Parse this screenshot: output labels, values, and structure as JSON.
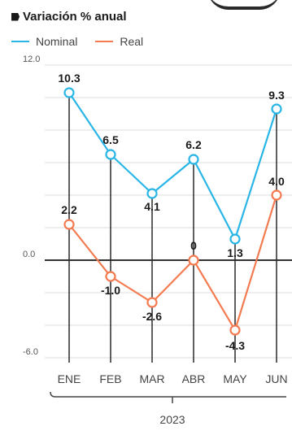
{
  "chart_data": {
    "type": "line",
    "title": "Variación % anual",
    "categories": [
      "ENE",
      "FEB",
      "MAR",
      "ABR",
      "MAY",
      "JUN"
    ],
    "group_label": "2023",
    "y_ticks": [
      "12.0",
      "0.0",
      "-6.0"
    ],
    "ylim": [
      -6,
      12
    ],
    "grid": true,
    "legend_position": "top-left",
    "series": [
      {
        "name": "Nominal",
        "color": "#29b6e6",
        "values": [
          10.3,
          6.5,
          4.1,
          6.2,
          1.3,
          9.3
        ],
        "labels": [
          "10.3",
          "6.5",
          "4.1",
          "6.2",
          "1.3",
          "9.3"
        ]
      },
      {
        "name": "Real",
        "color": "#f47a50",
        "values": [
          2.2,
          -1.0,
          -2.6,
          0,
          -4.3,
          4.0
        ],
        "labels": [
          "2.2",
          "-1.0",
          "-2.6",
          "0",
          "-4.3",
          "4.0"
        ]
      }
    ]
  }
}
